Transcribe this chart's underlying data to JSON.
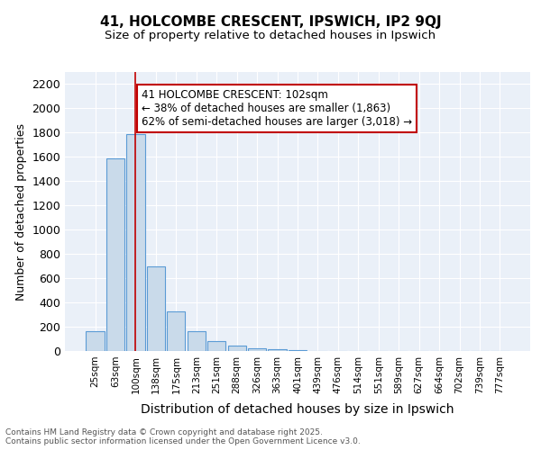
{
  "title1": "41, HOLCOMBE CRESCENT, IPSWICH, IP2 9QJ",
  "title2": "Size of property relative to detached houses in Ipswich",
  "xlabel": "Distribution of detached houses by size in Ipswich",
  "ylabel": "Number of detached properties",
  "categories": [
    "25sqm",
    "63sqm",
    "100sqm",
    "138sqm",
    "175sqm",
    "213sqm",
    "251sqm",
    "288sqm",
    "326sqm",
    "363sqm",
    "401sqm",
    "439sqm",
    "476sqm",
    "514sqm",
    "551sqm",
    "589sqm",
    "627sqm",
    "664sqm",
    "702sqm",
    "739sqm",
    "777sqm"
  ],
  "values": [
    163,
    1590,
    1790,
    700,
    330,
    163,
    80,
    48,
    25,
    12,
    8,
    3,
    2,
    0,
    0,
    0,
    0,
    0,
    0,
    0,
    0
  ],
  "bar_color": "#c9daea",
  "bar_edge_color": "#5b9bd5",
  "highlight_bar_index": 2,
  "highlight_line_color": "#c00000",
  "annotation_text": "41 HOLCOMBE CRESCENT: 102sqm\n← 38% of detached houses are smaller (1,863)\n62% of semi-detached houses are larger (3,018) →",
  "annotation_box_color": "#c00000",
  "ylim": [
    0,
    2300
  ],
  "yticks": [
    0,
    200,
    400,
    600,
    800,
    1000,
    1200,
    1400,
    1600,
    1800,
    2000,
    2200
  ],
  "bg_color": "#eaf0f8",
  "footer_line1": "Contains HM Land Registry data © Crown copyright and database right 2025.",
  "footer_line2": "Contains public sector information licensed under the Open Government Licence v3.0."
}
